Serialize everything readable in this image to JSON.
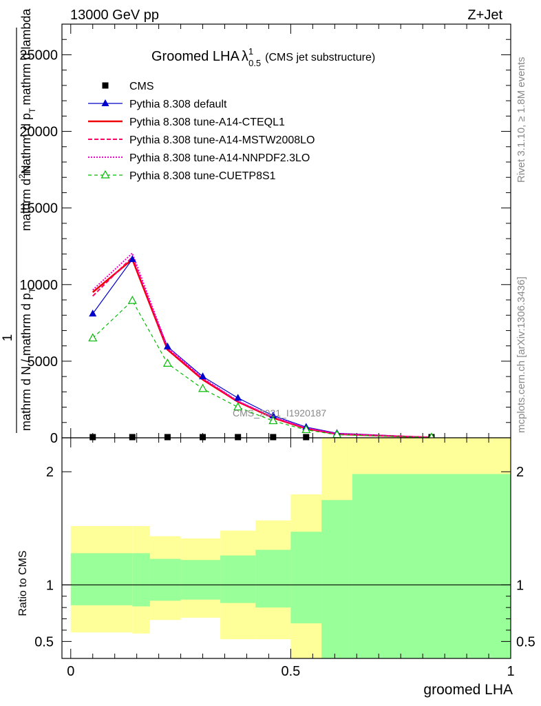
{
  "header": {
    "left": "13000 GeV pp",
    "right": "Z+Jet"
  },
  "side": {
    "rivet": "Rivet 3.1.10, ≥ 1.8M events",
    "mcplots": "mcplots.cern.ch [arXiv:1306.3436]"
  },
  "chart_data": [
    {
      "type": "line",
      "title_main": "Groomed LHA",
      "title_lambda": "λ",
      "title_sup": "1",
      "title_sub": "0.5",
      "title_suffix": "(CMS jet substructure)",
      "ylabel_parts": [
        "1",
        "mathrm d N / mathrm d p",
        "T",
        "mathrm d",
        "2",
        "N",
        "mathrm d p",
        "T",
        "mathrm d lambda"
      ],
      "ylim": [
        0,
        27000
      ],
      "yticks": [
        0,
        5000,
        10000,
        15000,
        20000,
        25000
      ],
      "ytick_labels": [
        "0",
        "5000",
        "10000",
        "15000",
        "20000",
        "25000"
      ],
      "xlim": [
        -0.02,
        1.0
      ],
      "watermark": "CMS_2021_I1920187",
      "x": [
        0.05,
        0.14,
        0.22,
        0.3,
        0.38,
        0.46,
        0.535,
        0.605,
        0.82
      ],
      "series": [
        {
          "name": "CMS",
          "color": "#000000",
          "marker": "square",
          "values": [
            0,
            0,
            0,
            0,
            0,
            0,
            0,
            0,
            0
          ]
        },
        {
          "name": "Pythia 8.308 default",
          "color": "#0000cc",
          "marker": "triangle",
          "dash": "",
          "values": [
            8100,
            11650,
            5950,
            4000,
            2600,
            1450,
            700,
            300,
            30
          ]
        },
        {
          "name": "Pythia 8.308 tune-A14-CTEQL1",
          "color": "#ee0000",
          "marker": "none",
          "dash": "",
          "width": 2.5,
          "values": [
            9500,
            11650,
            5750,
            3800,
            2350,
            1300,
            600,
            240,
            20
          ]
        },
        {
          "name": "Pythia 8.308 tune-A14-MSTW2008LO",
          "color": "#ff0066",
          "marker": "none",
          "dash": "6,3",
          "width": 2,
          "values": [
            9250,
            11800,
            5800,
            3850,
            2380,
            1330,
            620,
            250,
            22
          ]
        },
        {
          "name": "Pythia 8.308 tune-A14-NNPDF2.3LO",
          "color": "#ee00cc",
          "marker": "none",
          "dash": "2,2",
          "width": 2,
          "values": [
            9650,
            12050,
            5900,
            3900,
            2400,
            1350,
            640,
            260,
            24
          ]
        },
        {
          "name": "Pythia 8.308 tune-CUETP8S1",
          "color": "#00bb00",
          "marker": "open-triangle",
          "dash": "5,4",
          "width": 1.2,
          "values": [
            6500,
            8950,
            4850,
            3200,
            2000,
            1100,
            520,
            200,
            18
          ]
        }
      ]
    },
    {
      "type": "area",
      "ylabel": "Ratio to CMS",
      "xlabel": "groomed LHA",
      "ylim": [
        0.35,
        2.3
      ],
      "yticks": [
        0.5,
        1,
        2
      ],
      "ytick_labels": [
        "0.5",
        "1",
        "2"
      ],
      "xticks": [
        0,
        0.5,
        1
      ],
      "xtick_labels": [
        "0",
        "0.5",
        "1"
      ],
      "xlim": [
        -0.02,
        1.0
      ],
      "reference": 1,
      "bands": [
        {
          "name": "outer",
          "color": "#ffff99",
          "bins": [
            [
              0.0,
              0.14,
              0.58,
              1.52
            ],
            [
              0.14,
              0.18,
              0.57,
              1.52
            ],
            [
              0.18,
              0.25,
              0.69,
              1.43
            ],
            [
              0.25,
              0.34,
              0.71,
              1.41
            ],
            [
              0.34,
              0.42,
              0.52,
              1.48
            ],
            [
              0.42,
              0.5,
              0.52,
              1.57
            ],
            [
              0.5,
              0.57,
              0.35,
              1.8
            ],
            [
              0.57,
              0.64,
              0.35,
              2.3
            ],
            [
              0.64,
              1.0,
              0.35,
              2.3
            ]
          ]
        },
        {
          "name": "inner",
          "color": "#99ff99",
          "bins": [
            [
              0.0,
              0.14,
              0.82,
              1.28
            ],
            [
              0.14,
              0.18,
              0.81,
              1.28
            ],
            [
              0.18,
              0.25,
              0.86,
              1.23
            ],
            [
              0.25,
              0.34,
              0.87,
              1.22
            ],
            [
              0.34,
              0.42,
              0.84,
              1.26
            ],
            [
              0.42,
              0.5,
              0.8,
              1.31
            ],
            [
              0.5,
              0.57,
              0.66,
              1.47
            ],
            [
              0.57,
              0.64,
              0.35,
              1.75
            ],
            [
              0.64,
              1.0,
              0.35,
              1.98
            ]
          ]
        }
      ]
    }
  ]
}
